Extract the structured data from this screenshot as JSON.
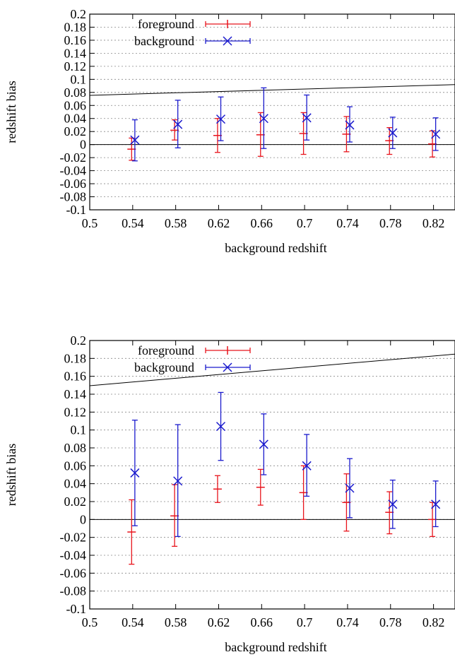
{
  "chart_data": [
    {
      "type": "scatter",
      "xlabel": "background redshift",
      "ylabel": "redshift bias",
      "xlim": [
        0.5,
        0.84
      ],
      "ylim": [
        -0.1,
        0.2
      ],
      "xticks": [
        0.5,
        0.54,
        0.58,
        0.62,
        0.66,
        0.7,
        0.74,
        0.78,
        0.82
      ],
      "xtick_labels": [
        "0.5",
        "0.54",
        "0.58",
        "0.62",
        "0.66",
        "0.7",
        "0.74",
        "0.78",
        "0.82"
      ],
      "yticks": [
        -0.1,
        -0.08,
        -0.06,
        -0.04,
        -0.02,
        0,
        0.02,
        0.04,
        0.06,
        0.08,
        0.1,
        0.12,
        0.14,
        0.16,
        0.18,
        0.2
      ],
      "ytick_labels": [
        "-0.1",
        "-0.08",
        "-0.06",
        "-0.04",
        "-0.02",
        "0",
        "0.02",
        "0.04",
        "0.06",
        "0.08",
        "0.1",
        "0.12",
        "0.14",
        "0.16",
        "0.18",
        "0.2"
      ],
      "grid": "horizontal dotted",
      "legend_position": "top-left",
      "series": [
        {
          "name": "foreground",
          "marker": "plus",
          "color": "#e8141c",
          "x": [
            0.539,
            0.579,
            0.619,
            0.659,
            0.699,
            0.739,
            0.779,
            0.819
          ],
          "y": [
            -0.007,
            0.022,
            0.014,
            0.015,
            0.017,
            0.016,
            0.006,
            0.001
          ],
          "yerr_low": [
            -0.024,
            0.007,
            -0.012,
            -0.018,
            -0.015,
            -0.011,
            -0.015,
            -0.019
          ],
          "yerr_high": [
            0.01,
            0.038,
            0.04,
            0.049,
            0.049,
            0.043,
            0.026,
            0.021
          ]
        },
        {
          "name": "background",
          "marker": "cross",
          "color": "#1a1acd",
          "x": [
            0.542,
            0.582,
            0.622,
            0.662,
            0.702,
            0.742,
            0.782,
            0.822
          ],
          "y": [
            0.007,
            0.031,
            0.039,
            0.04,
            0.041,
            0.03,
            0.018,
            0.016
          ],
          "yerr_low": [
            -0.025,
            -0.005,
            0.006,
            -0.006,
            0.007,
            0.004,
            -0.006,
            -0.009
          ],
          "yerr_high": [
            0.038,
            0.068,
            0.073,
            0.087,
            0.076,
            0.058,
            0.042,
            0.041
          ]
        }
      ],
      "reference_lines": [
        {
          "x": [
            0.5,
            0.84
          ],
          "y": [
            0,
            0
          ],
          "color": "#000000"
        },
        {
          "x": [
            0.5,
            0.84
          ],
          "y": [
            0.0755,
            0.092
          ],
          "color": "#000000"
        }
      ]
    },
    {
      "type": "scatter",
      "xlabel": "background redshift",
      "ylabel": "redshift bias",
      "xlim": [
        0.5,
        0.84
      ],
      "ylim": [
        -0.1,
        0.2
      ],
      "xticks": [
        0.5,
        0.54,
        0.58,
        0.62,
        0.66,
        0.7,
        0.74,
        0.78,
        0.82
      ],
      "xtick_labels": [
        "0.5",
        "0.54",
        "0.58",
        "0.62",
        "0.66",
        "0.7",
        "0.74",
        "0.78",
        "0.82"
      ],
      "yticks": [
        -0.1,
        -0.08,
        -0.06,
        -0.04,
        -0.02,
        0,
        0.02,
        0.04,
        0.06,
        0.08,
        0.1,
        0.12,
        0.14,
        0.16,
        0.18,
        0.2
      ],
      "ytick_labels": [
        "-0.1",
        "-0.08",
        "-0.06",
        "-0.04",
        "-0.02",
        "0",
        "0.02",
        "0.04",
        "0.06",
        "0.08",
        "0.1",
        "0.12",
        "0.14",
        "0.16",
        "0.18",
        "0.2"
      ],
      "grid": "horizontal dotted",
      "legend_position": "top-left",
      "series": [
        {
          "name": "foreground",
          "marker": "plus",
          "color": "#e8141c",
          "x": [
            0.539,
            0.579,
            0.619,
            0.659,
            0.699,
            0.739,
            0.779,
            0.819
          ],
          "y": [
            -0.014,
            0.004,
            0.034,
            0.036,
            0.03,
            0.019,
            0.008,
            0.0
          ],
          "yerr_low": [
            -0.05,
            -0.03,
            0.019,
            0.016,
            0.0,
            -0.013,
            -0.016,
            -0.019
          ],
          "yerr_high": [
            0.022,
            0.039,
            0.049,
            0.056,
            0.06,
            0.051,
            0.031,
            0.019
          ]
        },
        {
          "name": "background",
          "marker": "cross",
          "color": "#1a1acd",
          "x": [
            0.542,
            0.582,
            0.622,
            0.662,
            0.702,
            0.742,
            0.782,
            0.822
          ],
          "y": [
            0.052,
            0.043,
            0.104,
            0.084,
            0.06,
            0.035,
            0.017,
            0.017
          ],
          "yerr_low": [
            -0.007,
            -0.019,
            0.066,
            0.05,
            0.026,
            0.002,
            -0.01,
            -0.008
          ],
          "yerr_high": [
            0.111,
            0.106,
            0.142,
            0.118,
            0.095,
            0.068,
            0.044,
            0.043
          ]
        }
      ],
      "reference_lines": [
        {
          "x": [
            0.5,
            0.84
          ],
          "y": [
            0,
            0
          ],
          "color": "#000000"
        },
        {
          "x": [
            0.5,
            0.84
          ],
          "y": [
            0.1495,
            0.1848
          ],
          "color": "#000000"
        }
      ]
    }
  ]
}
